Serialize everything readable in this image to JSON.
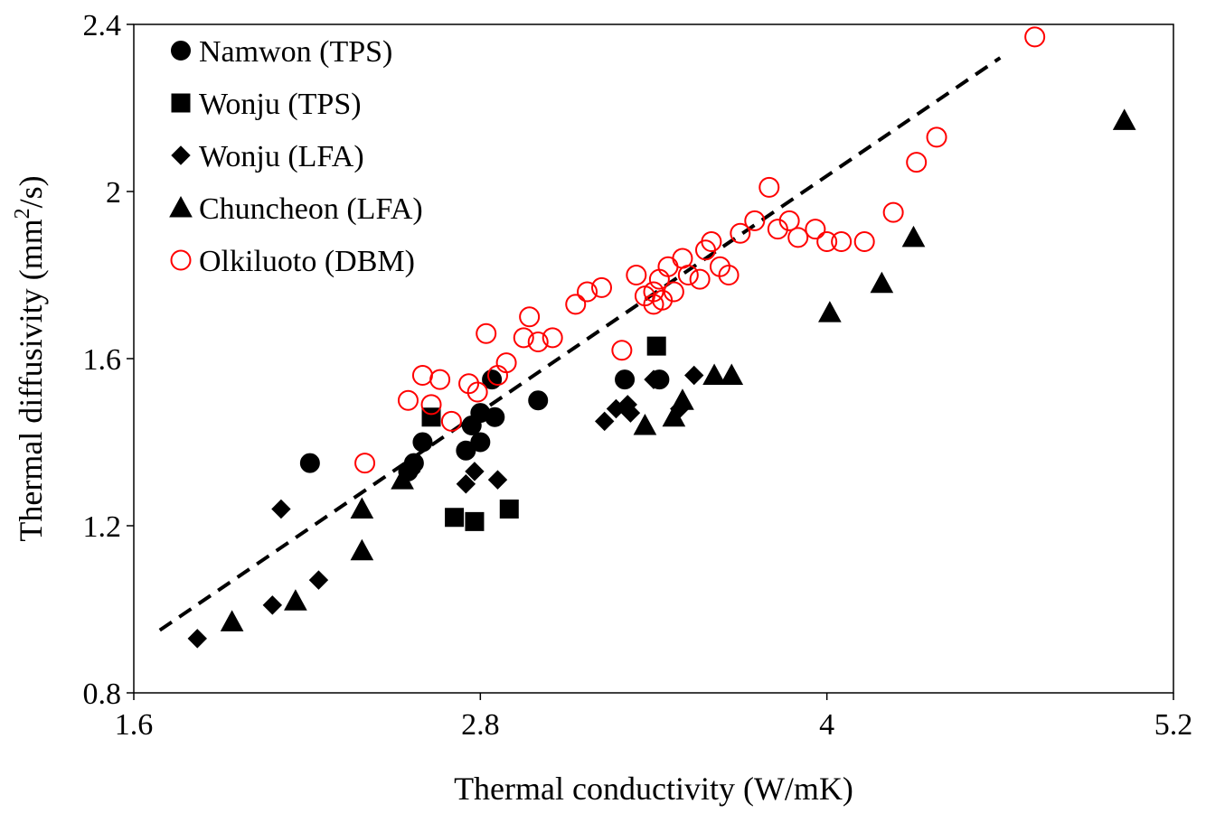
{
  "chart_data": {
    "type": "scatter",
    "xlabel": "Thermal conductivity (W/mK)",
    "ylabel_prefix": "Thermal diffusivity (mm",
    "ylabel_sup": "2",
    "ylabel_suffix": "/s)",
    "xlim": [
      1.6,
      5.2
    ],
    "ylim": [
      0.8,
      2.4
    ],
    "xticks": [
      "1.6",
      "2.8",
      "4",
      "5.2"
    ],
    "yticks": [
      "0.8",
      "1.2",
      "1.6",
      "2",
      "2.4"
    ],
    "grid": false,
    "legend_position": "top-left",
    "trendline": {
      "style": "dashed",
      "color": "#000000",
      "points": [
        [
          1.69,
          0.95
        ],
        [
          4.6,
          2.32
        ]
      ]
    },
    "series": [
      {
        "name": "Namwon (TPS)",
        "marker": "circle",
        "filled": true,
        "color": "#000000",
        "points": [
          [
            2.21,
            1.35
          ],
          [
            2.6,
            1.4
          ],
          [
            2.57,
            1.35
          ],
          [
            2.55,
            1.33
          ],
          [
            2.75,
            1.38
          ],
          [
            2.8,
            1.4
          ],
          [
            2.77,
            1.44
          ],
          [
            2.8,
            1.47
          ],
          [
            2.85,
            1.46
          ],
          [
            2.84,
            1.55
          ],
          [
            3.0,
            1.5
          ],
          [
            3.3,
            1.55
          ],
          [
            3.42,
            1.55
          ]
        ]
      },
      {
        "name": "Wonju (TPS)",
        "marker": "square",
        "filled": true,
        "color": "#000000",
        "points": [
          [
            2.63,
            1.46
          ],
          [
            2.71,
            1.22
          ],
          [
            2.78,
            1.21
          ],
          [
            2.9,
            1.24
          ],
          [
            3.41,
            1.63
          ]
        ]
      },
      {
        "name": "Wonju (LFA)",
        "marker": "diamond",
        "filled": true,
        "color": "#000000",
        "points": [
          [
            1.82,
            0.93
          ],
          [
            2.08,
            1.01
          ],
          [
            2.24,
            1.07
          ],
          [
            2.11,
            1.24
          ],
          [
            2.56,
            1.33
          ],
          [
            2.75,
            1.3
          ],
          [
            2.78,
            1.33
          ],
          [
            2.86,
            1.31
          ],
          [
            3.23,
            1.45
          ],
          [
            3.27,
            1.48
          ],
          [
            3.31,
            1.49
          ],
          [
            3.32,
            1.47
          ],
          [
            3.4,
            1.55
          ],
          [
            3.54,
            1.56
          ],
          [
            3.49,
            1.48
          ]
        ]
      },
      {
        "name": "Chuncheon (LFA)",
        "marker": "triangle",
        "filled": true,
        "color": "#000000",
        "points": [
          [
            1.94,
            0.97
          ],
          [
            2.16,
            1.02
          ],
          [
            2.39,
            1.14
          ],
          [
            2.39,
            1.24
          ],
          [
            2.53,
            1.31
          ],
          [
            3.37,
            1.44
          ],
          [
            3.47,
            1.46
          ],
          [
            3.5,
            1.5
          ],
          [
            3.61,
            1.56
          ],
          [
            3.67,
            1.56
          ],
          [
            4.01,
            1.71
          ],
          [
            4.19,
            1.78
          ],
          [
            4.3,
            1.89
          ],
          [
            5.03,
            2.17
          ]
        ]
      },
      {
        "name": "Olkiluoto (DBM)",
        "marker": "circle",
        "filled": false,
        "color": "#ff0000",
        "points": [
          [
            2.4,
            1.35
          ],
          [
            2.55,
            1.5
          ],
          [
            2.6,
            1.56
          ],
          [
            2.63,
            1.49
          ],
          [
            2.66,
            1.55
          ],
          [
            2.7,
            1.45
          ],
          [
            2.76,
            1.54
          ],
          [
            2.79,
            1.52
          ],
          [
            2.82,
            1.66
          ],
          [
            2.86,
            1.56
          ],
          [
            2.89,
            1.59
          ],
          [
            2.95,
            1.65
          ],
          [
            2.97,
            1.7
          ],
          [
            3.0,
            1.64
          ],
          [
            3.05,
            1.65
          ],
          [
            3.13,
            1.73
          ],
          [
            3.17,
            1.76
          ],
          [
            3.22,
            1.77
          ],
          [
            3.29,
            1.62
          ],
          [
            3.34,
            1.8
          ],
          [
            3.37,
            1.75
          ],
          [
            3.4,
            1.76
          ],
          [
            3.42,
            1.79
          ],
          [
            3.45,
            1.82
          ],
          [
            3.47,
            1.76
          ],
          [
            3.5,
            1.84
          ],
          [
            3.52,
            1.8
          ],
          [
            3.56,
            1.79
          ],
          [
            3.58,
            1.86
          ],
          [
            3.6,
            1.88
          ],
          [
            3.63,
            1.82
          ],
          [
            3.66,
            1.8
          ],
          [
            3.7,
            1.9
          ],
          [
            3.75,
            1.93
          ],
          [
            3.8,
            2.01
          ],
          [
            3.83,
            1.91
          ],
          [
            3.87,
            1.93
          ],
          [
            3.9,
            1.89
          ],
          [
            3.96,
            1.91
          ],
          [
            4.0,
            1.88
          ],
          [
            4.05,
            1.88
          ],
          [
            4.13,
            1.88
          ],
          [
            4.23,
            1.95
          ],
          [
            4.31,
            2.07
          ],
          [
            4.38,
            2.13
          ],
          [
            4.72,
            2.37
          ],
          [
            3.4,
            1.73
          ],
          [
            3.43,
            1.74
          ]
        ]
      }
    ]
  }
}
